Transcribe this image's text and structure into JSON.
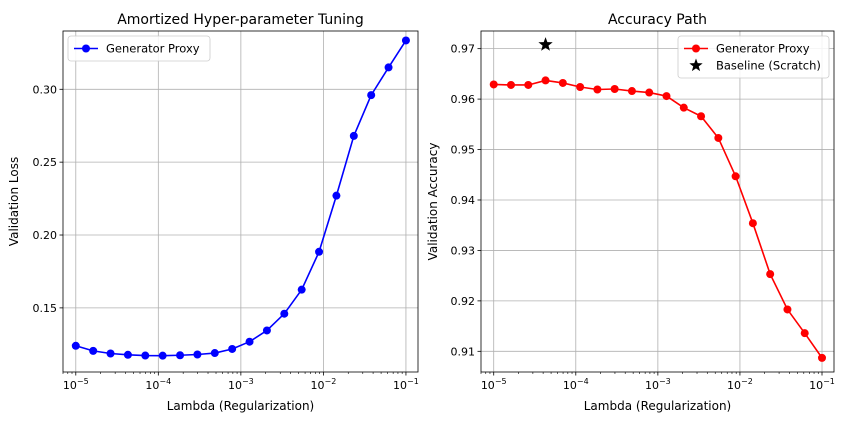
{
  "chart_data": [
    {
      "type": "line",
      "title": "Amortized Hyper-parameter Tuning",
      "xlabel": "Lambda (Regularization)",
      "ylabel": "Validation Loss",
      "xscale": "log",
      "xlim": [
        7e-06,
        0.14
      ],
      "ylim": [
        0.106,
        0.34
      ],
      "xticks": [
        {
          "value": 1e-05,
          "base": "10",
          "exp": "−5"
        },
        {
          "value": 0.0001,
          "base": "10",
          "exp": "−4"
        },
        {
          "value": 0.001,
          "base": "10",
          "exp": "−3"
        },
        {
          "value": 0.01,
          "base": "10",
          "exp": "−2"
        },
        {
          "value": 0.1,
          "base": "10",
          "exp": "−1"
        }
      ],
      "yticks": [
        0.15,
        0.2,
        0.25,
        0.3
      ],
      "ytick_labels": [
        "0.15",
        "0.20",
        "0.25",
        "0.30"
      ],
      "grid": true,
      "legend_position": "upper-left",
      "series": [
        {
          "name": "Generator Proxy",
          "color": "#0000ff",
          "marker": "circle",
          "x": [
            1e-05,
            1.624e-05,
            2.637e-05,
            4.281e-05,
            6.952e-05,
            0.0001129,
            0.0001833,
            0.0002976,
            0.0004833,
            0.0007848,
            0.001274,
            0.002069,
            0.00336,
            0.005456,
            0.008859,
            0.01438,
            0.02336,
            0.03793,
            0.06158,
            0.1
          ],
          "y": [
            0.124,
            0.1205,
            0.1187,
            0.1178,
            0.1173,
            0.1172,
            0.1175,
            0.118,
            0.119,
            0.1218,
            0.1268,
            0.1345,
            0.146,
            0.1625,
            0.1885,
            0.227,
            0.268,
            0.296,
            0.315,
            0.3335
          ]
        }
      ]
    },
    {
      "type": "line",
      "title": "Accuracy Path",
      "xlabel": "Lambda (Regularization)",
      "ylabel": "Validation Accuracy",
      "xscale": "log",
      "xlim": [
        7e-06,
        0.14
      ],
      "ylim": [
        0.9059,
        0.9735
      ],
      "xticks": [
        {
          "value": 1e-05,
          "base": "10",
          "exp": "−5"
        },
        {
          "value": 0.0001,
          "base": "10",
          "exp": "−4"
        },
        {
          "value": 0.001,
          "base": "10",
          "exp": "−3"
        },
        {
          "value": 0.01,
          "base": "10",
          "exp": "−2"
        },
        {
          "value": 0.1,
          "base": "10",
          "exp": "−1"
        }
      ],
      "yticks": [
        0.91,
        0.92,
        0.93,
        0.94,
        0.95,
        0.96,
        0.97
      ],
      "ytick_labels": [
        "0.91",
        "0.92",
        "0.93",
        "0.94",
        "0.95",
        "0.96",
        "0.97"
      ],
      "grid": true,
      "legend_position": "upper-right",
      "series": [
        {
          "name": "Generator Proxy",
          "color": "#ff0000",
          "marker": "circle",
          "x": [
            1e-05,
            1.624e-05,
            2.637e-05,
            4.281e-05,
            6.952e-05,
            0.0001129,
            0.0001833,
            0.0002976,
            0.0004833,
            0.0007848,
            0.001274,
            0.002069,
            0.00336,
            0.005456,
            0.008859,
            0.01438,
            0.02336,
            0.03793,
            0.06158,
            0.1
          ],
          "y": [
            0.9629,
            0.9628,
            0.9628,
            0.9637,
            0.9632,
            0.9624,
            0.9619,
            0.962,
            0.9616,
            0.9613,
            0.9606,
            0.9583,
            0.9566,
            0.9523,
            0.9447,
            0.9354,
            0.9253,
            0.9183,
            0.9136,
            0.9087
          ]
        },
        {
          "name": "Baseline (Scratch)",
          "color": "#000000",
          "marker": "star",
          "x": [
            4.281e-05
          ],
          "y": [
            0.9708
          ]
        }
      ]
    }
  ]
}
